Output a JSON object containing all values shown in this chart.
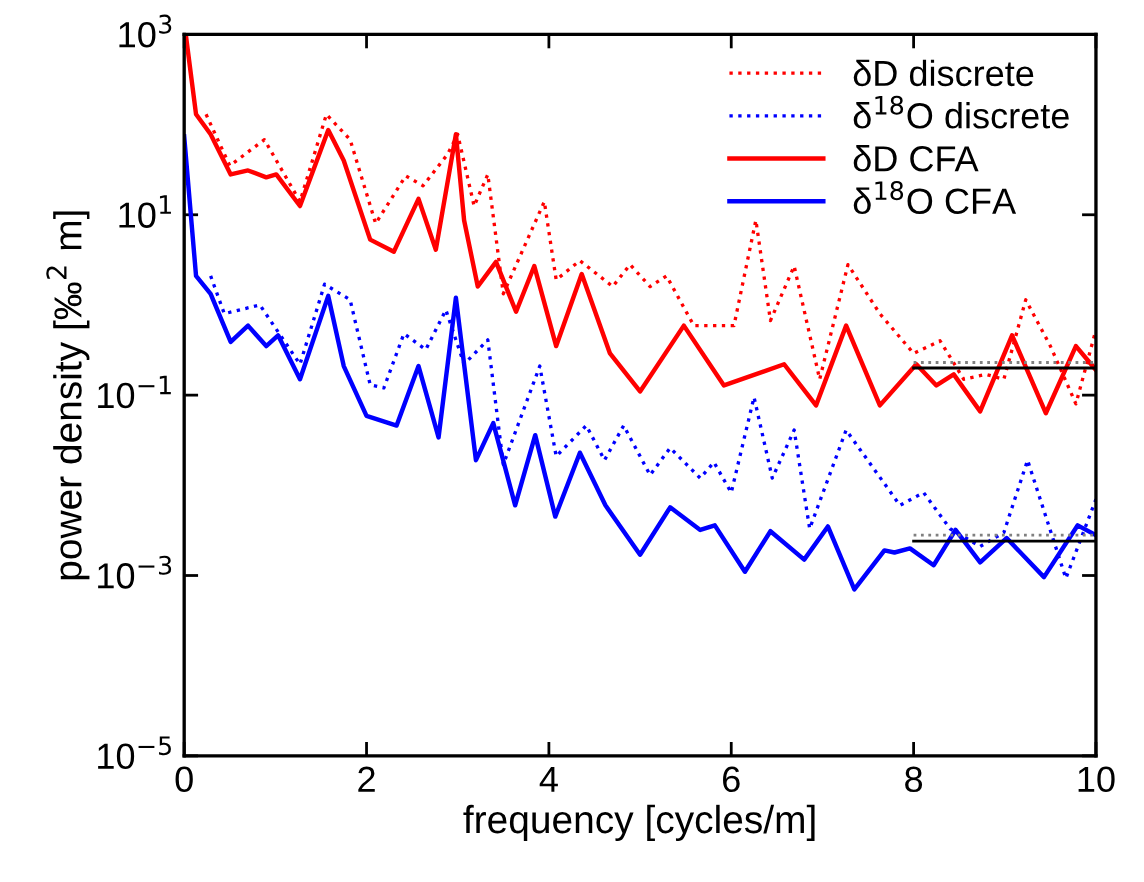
{
  "chart_data": {
    "type": "line",
    "xlabel": "frequency [cycles/m]",
    "ylabel": "power density [‰$^{2}$ m]",
    "log": "y",
    "xlim": [
      0,
      10
    ],
    "ylim": [
      1e-05,
      1000
    ],
    "xticks": [
      0,
      2,
      4,
      6,
      8,
      10
    ],
    "yticks": [
      {
        "value": 1e-05,
        "label": "10$^{−5}$"
      },
      {
        "value": 0.001,
        "label": "10$^{−3}$"
      },
      {
        "value": 0.1,
        "label": "10$^{−1}$"
      },
      {
        "value": 10,
        "label": "10$^{1}$"
      },
      {
        "value": 1000,
        "label": "10$^{3}$"
      }
    ],
    "grid": false,
    "legend": "top right",
    "marker": "none",
    "series": [
      {
        "name": "δD discrete",
        "color": "#ff0000",
        "line_style": "dotted",
        "x": [
          0.24,
          0.5,
          0.88,
          1.27,
          1.56,
          1.82,
          2.1,
          2.43,
          2.62,
          2.89,
          3.0,
          3.18,
          3.33,
          3.5,
          3.95,
          4.08,
          4.34,
          4.7,
          4.89,
          5.11,
          5.29,
          5.59,
          6.03,
          6.27,
          6.43,
          6.69,
          6.97,
          7.28,
          7.63,
          8.0,
          8.29,
          8.55,
          8.79,
          8.99,
          9.23,
          9.5,
          9.78,
          10
        ],
        "values": [
          130,
          35,
          68,
          14,
          130,
          68,
          8,
          27,
          21,
          47,
          78,
          12.5,
          28,
          1.33,
          14,
          1.9,
          3.1,
          1.6,
          2.8,
          1.6,
          2.1,
          0.59,
          0.59,
          8.7,
          0.67,
          2.7,
          0.15,
          2.8,
          0.8,
          0.29,
          0.4,
          0.15,
          0.17,
          0.15,
          1.14,
          0.35,
          0.08,
          0.53
        ]
      },
      {
        "name": "δ$^{18}$O discrete",
        "color": "#0000ff",
        "line_style": "dotted",
        "x": [
          0.29,
          0.44,
          0.83,
          1.27,
          1.54,
          1.82,
          2.04,
          2.19,
          2.41,
          2.65,
          2.87,
          3.07,
          3.33,
          3.5,
          3.9,
          4.08,
          4.41,
          4.61,
          4.82,
          5.11,
          5.33,
          5.66,
          5.81,
          6.0,
          6.25,
          6.45,
          6.69,
          6.86,
          7.26,
          7.85,
          8.11,
          8.4,
          8.73,
          8.99,
          9.25,
          9.67,
          10
        ],
        "values": [
          2.1,
          0.8,
          1.0,
          0.22,
          1.7,
          1.14,
          0.13,
          0.12,
          0.48,
          0.32,
          0.88,
          0.22,
          0.41,
          0.017,
          0.21,
          0.021,
          0.046,
          0.019,
          0.046,
          0.013,
          0.026,
          0.012,
          0.018,
          0.0083,
          0.095,
          0.012,
          0.041,
          0.0033,
          0.041,
          0.006,
          0.0083,
          0.0033,
          0.0021,
          0.003,
          0.019,
          0.00093,
          0.007
        ]
      },
      {
        "name": "δD CFA",
        "color": "#ff0000",
        "line_style": "solid",
        "x": [
          0,
          0.02,
          0.13,
          0.29,
          0.51,
          0.7,
          0.9,
          1.01,
          1.27,
          1.58,
          1.75,
          2.04,
          2.3,
          2.57,
          2.76,
          2.98,
          3.07,
          3.22,
          3.42,
          3.64,
          3.84,
          4.08,
          4.36,
          4.67,
          5.0,
          5.48,
          5.92,
          6.58,
          6.93,
          7.26,
          7.63,
          8.03,
          8.25,
          8.44,
          8.73,
          9.08,
          9.45,
          9.78,
          10
        ],
        "values": [
          1000,
          950,
          130,
          78,
          28,
          31,
          26,
          28,
          12.5,
          87,
          40,
          5.3,
          3.9,
          15,
          4.1,
          78,
          8.7,
          1.6,
          3.0,
          0.84,
          2.7,
          0.35,
          2.2,
          0.29,
          0.11,
          0.59,
          0.128,
          0.22,
          0.077,
          0.59,
          0.077,
          0.22,
          0.128,
          0.17,
          0.066,
          0.46,
          0.063,
          0.35,
          0.19
        ]
      },
      {
        "name": "δ$^{18}$O CFA",
        "color": "#0000ff",
        "line_style": "solid",
        "x": [
          0,
          0.13,
          0.29,
          0.51,
          0.7,
          0.9,
          1.03,
          1.27,
          1.58,
          1.75,
          2.0,
          2.33,
          2.57,
          2.79,
          2.98,
          3.2,
          3.39,
          3.63,
          3.85,
          4.07,
          4.34,
          4.62,
          5.0,
          5.33,
          5.66,
          5.82,
          6.15,
          6.43,
          6.8,
          7.06,
          7.35,
          7.68,
          7.79,
          7.96,
          8.22,
          8.46,
          8.73,
          9.02,
          9.43,
          9.8,
          10
        ],
        "values": [
          74,
          2.1,
          1.33,
          0.39,
          0.59,
          0.35,
          0.46,
          0.15,
          1.26,
          0.21,
          0.059,
          0.046,
          0.21,
          0.034,
          1.2,
          0.019,
          0.049,
          0.006,
          0.036,
          0.0045,
          0.023,
          0.006,
          0.0017,
          0.0057,
          0.0032,
          0.0036,
          0.0011,
          0.0031,
          0.0015,
          0.0035,
          0.0007,
          0.0019,
          0.0018,
          0.002,
          0.0013,
          0.0032,
          0.0014,
          0.0026,
          0.00096,
          0.0036,
          0.0028
        ]
      },
      {
        "color": "#808080",
        "line_style": "dotted",
        "x": [
          8,
          10
        ],
        "values": [
          0.23,
          0.23
        ]
      },
      {
        "color": "#000000",
        "line_style": "solid",
        "x": [
          8,
          10
        ],
        "values": [
          0.2,
          0.2
        ]
      },
      {
        "color": "#808080",
        "line_style": "dotted",
        "x": [
          8,
          10
        ],
        "values": [
          0.0028,
          0.0028
        ]
      },
      {
        "color": "#000000",
        "line_style": "solid",
        "x": [
          8,
          10
        ],
        "values": [
          0.0024,
          0.0024
        ]
      }
    ]
  }
}
